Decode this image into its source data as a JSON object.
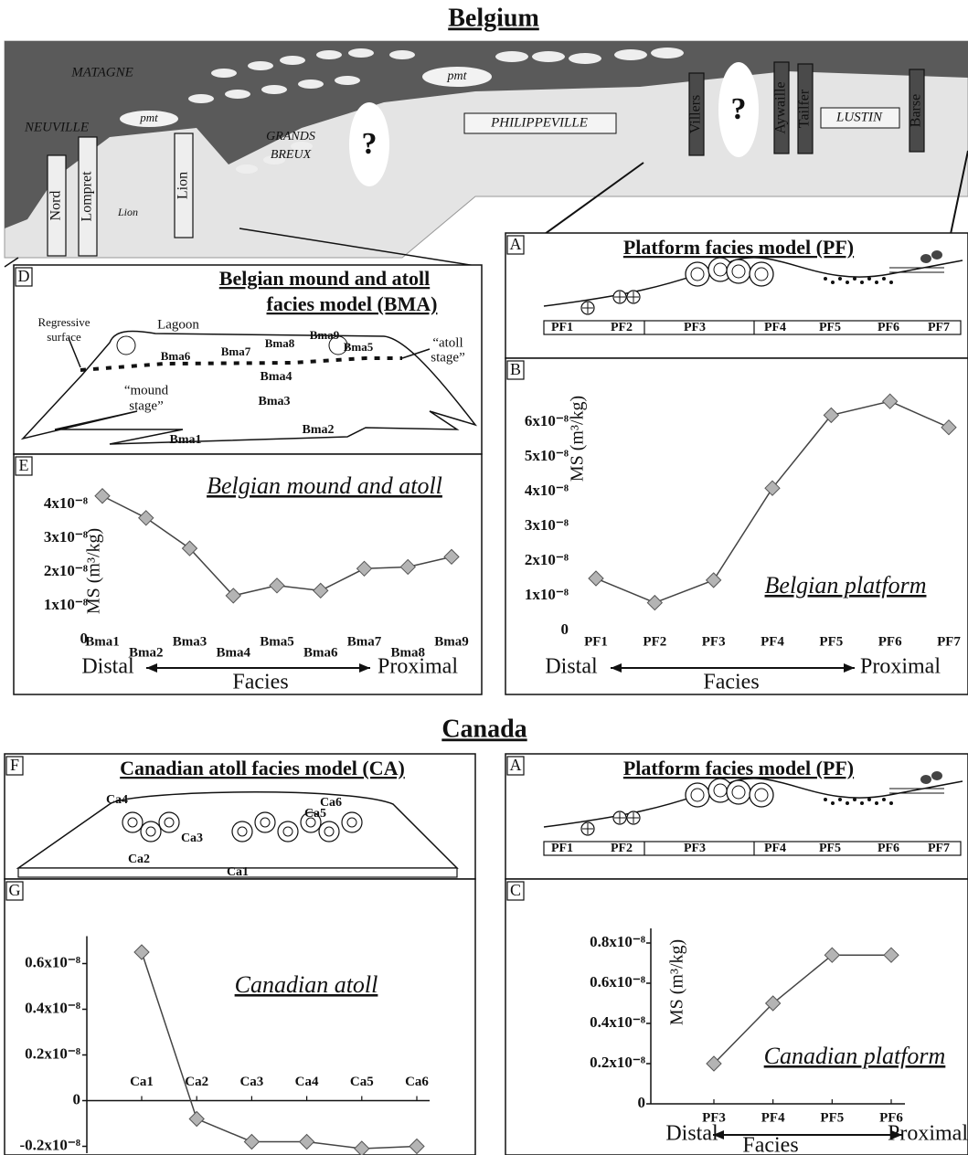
{
  "headings": {
    "belgium": "Belgium",
    "canada": "Canada"
  },
  "cross_section": {
    "labels": [
      "MATAGNE",
      "NEUVILLE",
      "pmt",
      "pmt",
      "GRANDS",
      "BREUX",
      "?",
      "?",
      "PHILIPPEVILLE",
      "LUSTIN",
      "Lion",
      "Nord",
      "Lompret",
      "Lion",
      "Villers",
      "Aywaille",
      "Tailfer",
      "Barse"
    ]
  },
  "panel_d": {
    "letter": "D",
    "title_lines": [
      "Belgian mound and atoll",
      "facies model (BMA)"
    ],
    "labels": [
      "Regressive",
      "surface",
      "Lagoon",
      "Bma9",
      "Bma8",
      "Bma7",
      "Bma6",
      "Bma5",
      "Bma4",
      "Bma3",
      "Bma2",
      "Bma1",
      "“mound",
      "stage”",
      "“atoll",
      "stage”"
    ]
  },
  "panel_a_belgium": {
    "letter": "A",
    "title": "Platform facies model (PF)",
    "facies": [
      "PF1",
      "PF2",
      "PF3",
      "PF4",
      "PF5",
      "PF6",
      "PF7"
    ]
  },
  "panel_f": {
    "letter": "F",
    "title": "Canadian atoll facies model (CA)",
    "labels": [
      "Ca4",
      "Ca5",
      "Ca6",
      "Ca3",
      "Ca2",
      "Ca1"
    ]
  },
  "panel_a_canada": {
    "letter": "A",
    "title": "Platform facies model (PF)",
    "facies": [
      "PF1",
      "PF2",
      "PF3",
      "PF4",
      "PF5",
      "PF6",
      "PF7"
    ]
  },
  "chart_data": [
    {
      "type": "line",
      "letter": "E",
      "title": "Belgian mound and atoll",
      "ylabel": "MS (m³/kg)",
      "categories": [
        "Bma1",
        "Bma2",
        "Bma3",
        "Bma4",
        "Bma5",
        "Bma6",
        "Bma7",
        "Bma8",
        "Bma9"
      ],
      "values": [
        4.25e-08,
        3.6e-08,
        2.7e-08,
        1.3e-08,
        1.6e-08,
        1.45e-08,
        2.1e-08,
        2.15e-08,
        2.45e-08
      ],
      "ylim": [
        0,
        4.5e-08
      ],
      "yticks": [
        0,
        {
          "value": 1e-08,
          "label": "1x10⁻⁸"
        },
        {
          "value": 2e-08,
          "label": "2x10⁻⁸"
        },
        {
          "value": 3e-08,
          "label": "3x10⁻⁸"
        },
        {
          "value": 4e-08,
          "label": "4x10⁻⁸"
        }
      ],
      "x_left": "Distal",
      "xlabel": "Facies",
      "x_right": "Proximal",
      "axis_lines": false,
      "marker_color": "#b4b4b4",
      "line_color": "#444444"
    },
    {
      "type": "line",
      "letter": "B",
      "title": "Belgian platform",
      "ylabel": "MS (m³/kg)",
      "categories": [
        "PF1",
        "PF2",
        "PF3",
        "PF4",
        "PF5",
        "PF6",
        "PF7"
      ],
      "values": [
        1.5e-08,
        8e-09,
        1.45e-08,
        4.1e-08,
        6.2e-08,
        6.6e-08,
        5.85e-08
      ],
      "ylim": [
        0,
        7e-08
      ],
      "yticks": [
        0,
        {
          "value": 1e-08,
          "label": "1x10⁻⁸"
        },
        {
          "value": 2e-08,
          "label": "2x10⁻⁸"
        },
        {
          "value": 3e-08,
          "label": "3x10⁻⁸"
        },
        {
          "value": 4e-08,
          "label": "4x10⁻⁸"
        },
        {
          "value": 5e-08,
          "label": "5x10⁻⁸"
        },
        {
          "value": 6e-08,
          "label": "6x10⁻⁸"
        }
      ],
      "x_left": "Distal",
      "xlabel": "Facies",
      "x_right": "Proximal",
      "axis_lines": false,
      "marker_color": "#b4b4b4",
      "line_color": "#444444"
    },
    {
      "type": "line",
      "letter": "G",
      "title": "Canadian atoll",
      "categories": [
        "Ca1",
        "Ca2",
        "Ca3",
        "Ca4",
        "Ca5",
        "Ca6"
      ],
      "values": [
        6.5e-09,
        -8e-10,
        -1.8e-09,
        -1.8e-09,
        -2.1e-09,
        -2e-09
      ],
      "ylim": [
        -2.3e-09,
        7e-09
      ],
      "yticks": [
        {
          "value": -2e-09,
          "label": "-0.2x10⁻⁸"
        },
        0,
        {
          "value": 2e-09,
          "label": "0.2x10⁻⁸"
        },
        {
          "value": 4e-09,
          "label": "0.4x10⁻⁸"
        },
        {
          "value": 6e-09,
          "label": "0.6x10⁻⁸"
        }
      ],
      "axis_lines": true,
      "marker_color": "#b4b4b4",
      "line_color": "#444444"
    },
    {
      "type": "line",
      "letter": "C",
      "title": "Canadian platform",
      "ylabel": "MS (m³/kg)",
      "categories": [
        "PF3",
        "PF4",
        "PF5",
        "PF6"
      ],
      "values": [
        2e-09,
        5e-09,
        7.4e-09,
        7.4e-09
      ],
      "ylim": [
        0,
        8.5e-09
      ],
      "yticks": [
        0,
        {
          "value": 2e-09,
          "label": "0.2x10⁻⁸"
        },
        {
          "value": 4e-09,
          "label": "0.4x10⁻⁸"
        },
        {
          "value": 6e-09,
          "label": "0.6x10⁻⁸"
        },
        {
          "value": 8e-09,
          "label": "0.8x10⁻⁸"
        }
      ],
      "x_left": "Distal",
      "xlabel": "Facies",
      "x_right": "Proximal",
      "axis_lines": true,
      "marker_color": "#b4b4b4",
      "line_color": "#444444"
    }
  ]
}
